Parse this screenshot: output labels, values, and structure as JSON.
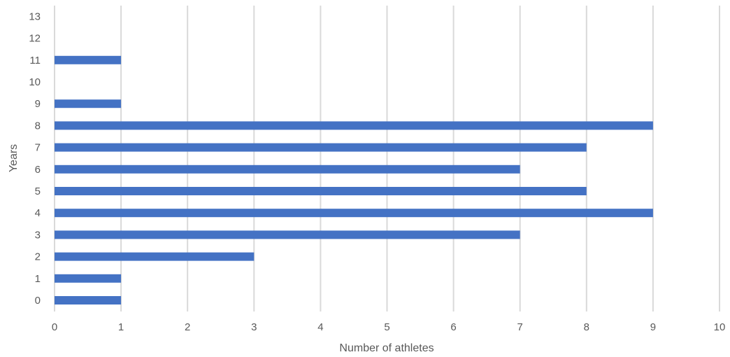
{
  "chart_data": {
    "type": "bar",
    "orientation": "horizontal",
    "title": "",
    "xlabel": "Number of athletes",
    "ylabel": "Years",
    "xlim": [
      0,
      10
    ],
    "x_ticks": [
      "0",
      "1",
      "2",
      "3",
      "4",
      "5",
      "6",
      "7",
      "8",
      "9",
      "10"
    ],
    "categories": [
      "0",
      "1",
      "2",
      "3",
      "4",
      "5",
      "6",
      "7",
      "8",
      "9",
      "10",
      "11",
      "12",
      "13"
    ],
    "values": [
      1,
      1,
      3,
      7,
      9,
      8,
      7,
      8,
      9,
      1,
      0,
      1,
      0,
      0
    ],
    "grid": "vertical",
    "legend": "none",
    "colors": {
      "bar": "#4472c4",
      "grid": "#d9d9d9",
      "text": "#595959"
    }
  }
}
